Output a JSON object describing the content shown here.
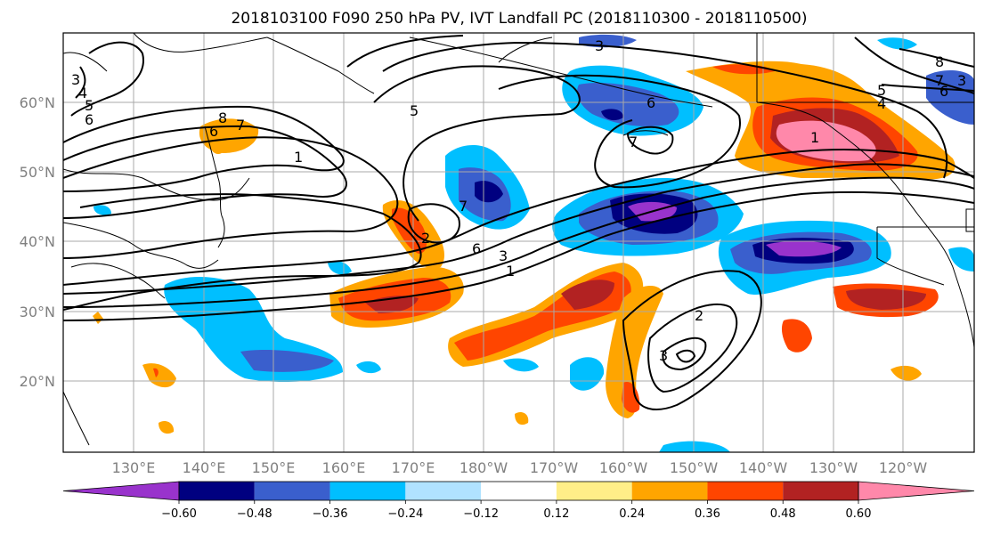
{
  "title": "2018103100 F090 250 hPa PV, IVT Landfall PC (2018110300 - 2018110500)",
  "colors": {
    "contour": "#000000",
    "grid": "#a9a9a9",
    "coastline": "#000000",
    "tick_text": "#808080"
  },
  "lat_labels": [
    "60°N",
    "50°N",
    "40°N",
    "30°N",
    "20°N"
  ],
  "lon_labels": [
    "130°E",
    "140°E",
    "150°E",
    "160°E",
    "170°E",
    "180°W",
    "170°W",
    "160°W",
    "150°W",
    "140°W",
    "130°W",
    "120°W"
  ],
  "colorbar": {
    "colors": [
      "#9933cc",
      "#000080",
      "#3a5fcd",
      "#00bfff",
      "#b0e2ff",
      "#ffffff",
      "#ffee88",
      "#ffa500",
      "#ff4500",
      "#b22222",
      "#ff88aa"
    ],
    "labels": [
      "−0.60",
      "−0.48",
      "−0.36",
      "−0.24",
      "−0.12",
      "0.12",
      "0.24",
      "0.36",
      "0.48",
      "0.60"
    ]
  },
  "contour_labels": [
    "3",
    "4",
    "5",
    "6",
    "8",
    "7",
    "6",
    "1",
    "5",
    "3",
    "6",
    "7",
    "5",
    "4",
    "7",
    "8",
    "6",
    "3",
    "1",
    "7",
    "6",
    "3",
    "2",
    "1",
    "3",
    "2"
  ]
}
